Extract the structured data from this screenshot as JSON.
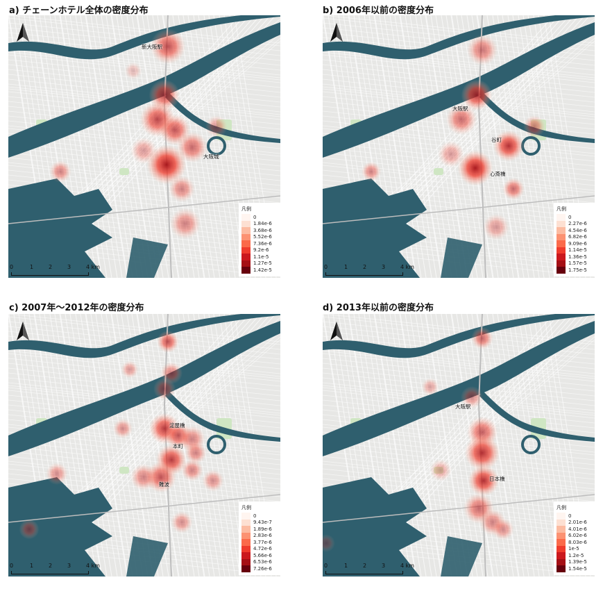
{
  "panels": [
    {
      "title": "a) チェーンホテル全体の密度分布",
      "legend_title": "凡例",
      "legend_values": [
        "0",
        "1.84e-6",
        "3.68e-6",
        "5.52e-6",
        "7.36e-6",
        "9.2e-6",
        "1.1e-5",
        "1.27e-5",
        "1.42e-5"
      ],
      "places": [
        "新大阪駅",
        "大阪城"
      ]
    },
    {
      "title": "b) 2006年以前の密度分布",
      "legend_title": "凡例",
      "legend_values": [
        "0",
        "2.27e-6",
        "4.54e-6",
        "6.82e-6",
        "9.09e-6",
        "1.14e-5",
        "1.36e-5",
        "1.57e-5",
        "1.75e-5"
      ],
      "places": [
        "大阪駅",
        "谷町",
        "心斎橋"
      ]
    },
    {
      "title": "c) 2007年～2012年の密度分布",
      "legend_title": "凡例",
      "legend_values": [
        "0",
        "9.43e-7",
        "1.89e-6",
        "2.83e-6",
        "3.77e-6",
        "4.72e-6",
        "5.66e-6",
        "6.53e-6",
        "7.26e-6"
      ],
      "places": [
        "淀屋橋",
        "本町",
        "難波"
      ]
    },
    {
      "title": "d) 2013年以前の密度分布",
      "legend_title": "凡例",
      "legend_values": [
        "0",
        "2.01e-6",
        "4.01e-6",
        "6.02e-6",
        "8.03e-6",
        "1e-5",
        "1.2e-5",
        "1.39e-5",
        "1.54e-5"
      ],
      "places": [
        "大阪駅",
        "日本橋"
      ]
    }
  ],
  "scale": {
    "ticks": [
      "0",
      "1",
      "2",
      "3",
      "4 km"
    ]
  },
  "legend_colors": [
    "#fff5f0",
    "#fde0d2",
    "#fcbba1",
    "#fc9272",
    "#fb6a4a",
    "#ef3b2c",
    "#cb181d",
    "#a50f15",
    "#67000d"
  ],
  "map_colors": {
    "land": "#e7e7e5",
    "water": "#2f5f6e",
    "road": "#ffffff",
    "park": "#cfe6c3"
  }
}
